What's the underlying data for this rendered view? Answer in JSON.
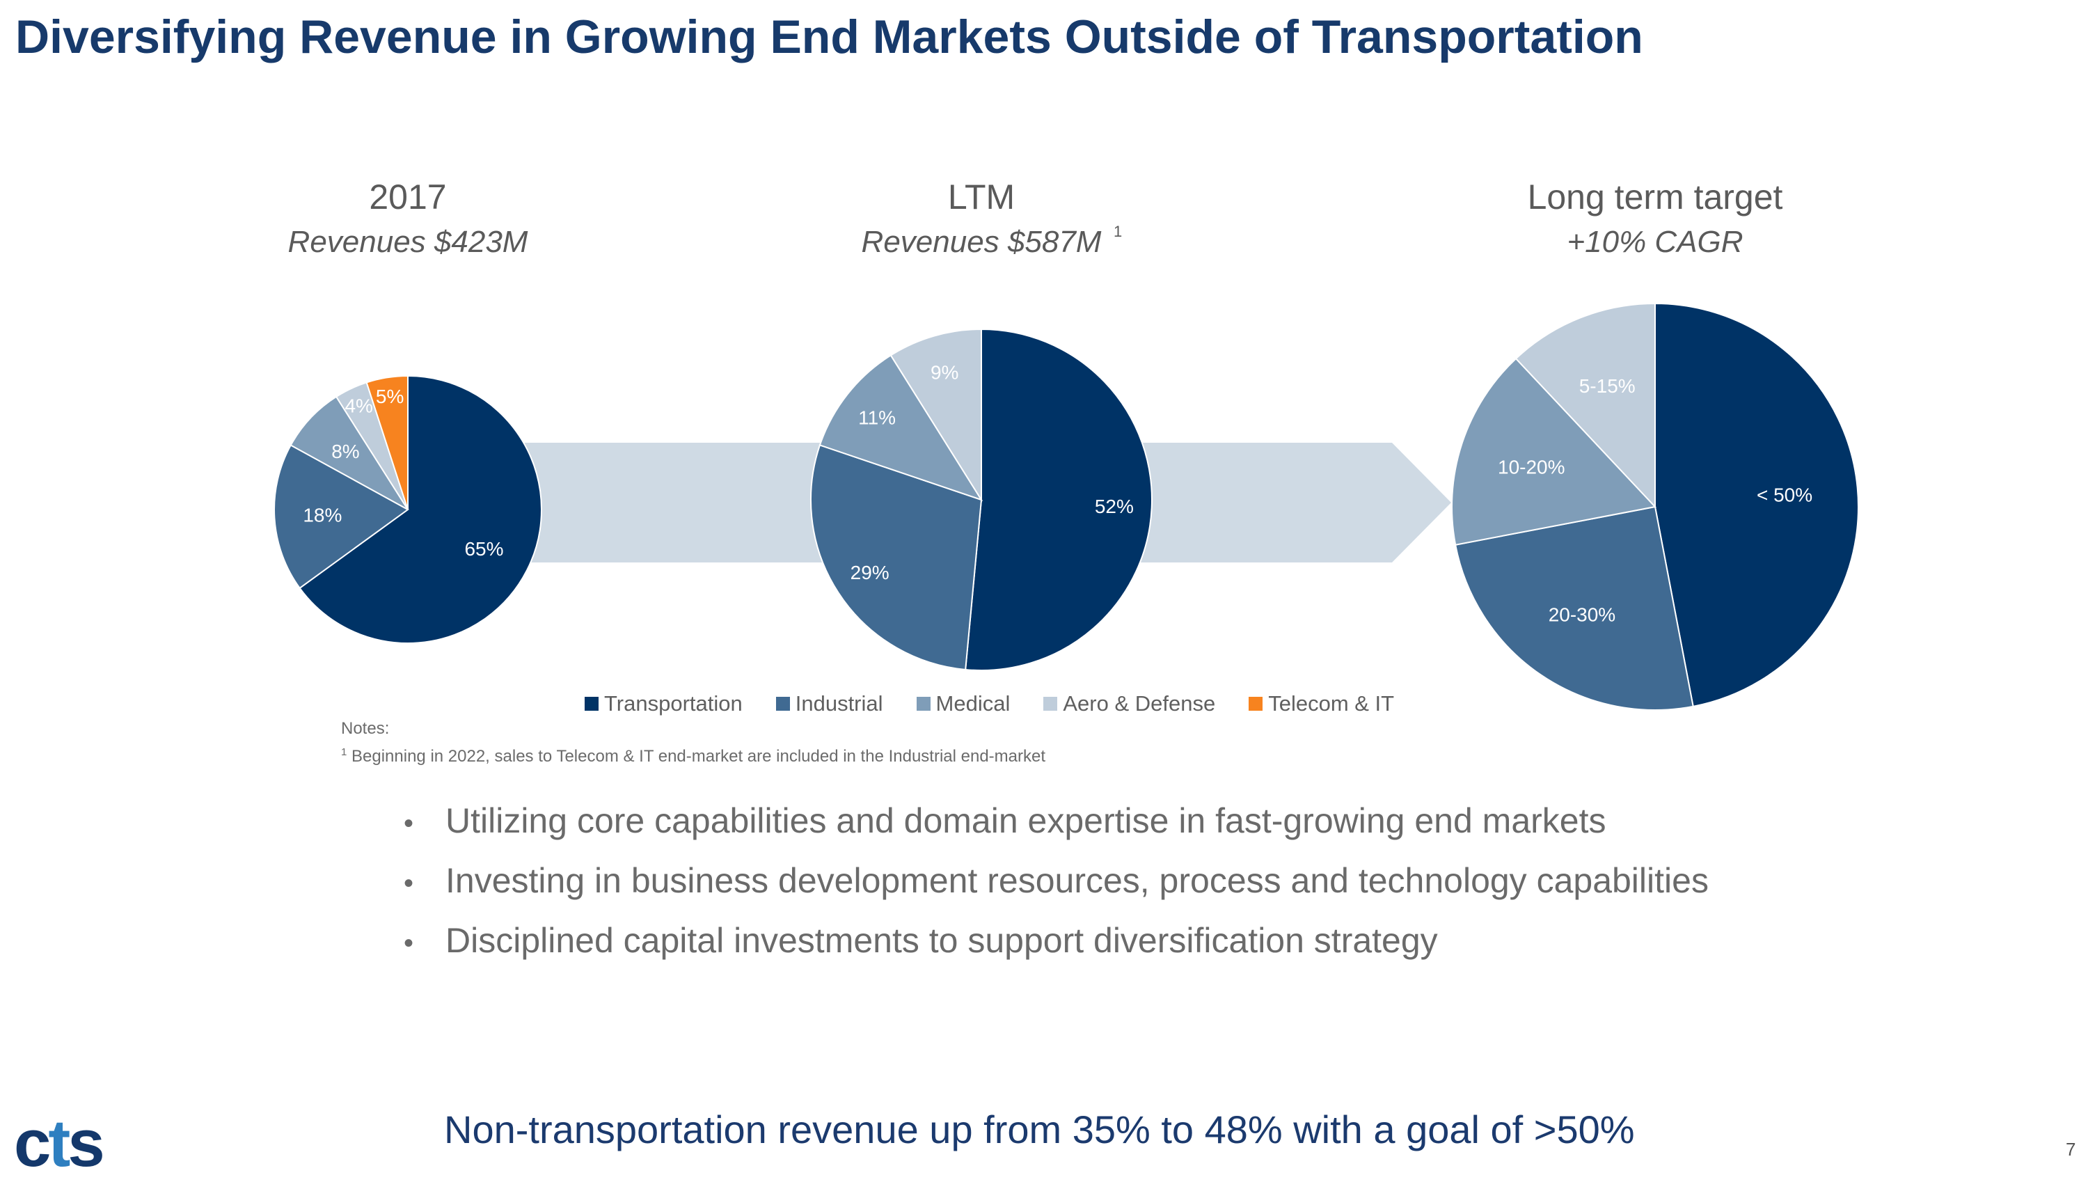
{
  "title": "Diversifying Revenue in Growing End Markets Outside of Transportation",
  "colors": {
    "title": "#173a6b",
    "transportation": "#003366",
    "industrial": "#406a92",
    "medical": "#7f9db8",
    "aero_defense": "#bfcddb",
    "telecom_it": "#f7831f",
    "arrow": "#cfdae4"
  },
  "chart_data": [
    {
      "type": "pie",
      "title": "2017",
      "subtitle": "Revenues $423M",
      "footnote_marker": "",
      "slices": [
        {
          "label": "Transportation",
          "value": 65,
          "text": "65%"
        },
        {
          "label": "Industrial",
          "value": 18,
          "text": "18%"
        },
        {
          "label": "Medical",
          "value": 8,
          "text": "8%"
        },
        {
          "label": "Aero & Defense",
          "value": 4,
          "text": "4%"
        },
        {
          "label": "Telecom & IT",
          "value": 5,
          "text": "5%"
        }
      ]
    },
    {
      "type": "pie",
      "title": "LTM",
      "subtitle": "Revenues $587M",
      "footnote_marker": "1",
      "slices": [
        {
          "label": "Transportation",
          "value": 52,
          "text": "52%"
        },
        {
          "label": "Industrial",
          "value": 29,
          "text": "29%"
        },
        {
          "label": "Medical",
          "value": 11,
          "text": "11%"
        },
        {
          "label": "Aero & Defense",
          "value": 9,
          "text": "9%"
        }
      ]
    },
    {
      "type": "pie",
      "title": "Long term target",
      "subtitle": "+10% CAGR",
      "footnote_marker": "",
      "slices": [
        {
          "label": "Transportation",
          "value": 47,
          "text": "< 50%"
        },
        {
          "label": "Industrial",
          "value": 25,
          "text": "20-30%"
        },
        {
          "label": "Medical",
          "value": 16,
          "text": "10-20%"
        },
        {
          "label": "Aero & Defense",
          "value": 12,
          "text": "5-15%"
        }
      ]
    }
  ],
  "legend": [
    {
      "label": "Transportation",
      "color": "#003366"
    },
    {
      "label": "Industrial",
      "color": "#406a92"
    },
    {
      "label": "Medical",
      "color": "#7f9db8"
    },
    {
      "label": "Aero & Defense",
      "color": "#bfcddb"
    },
    {
      "label": "Telecom & IT",
      "color": "#f7831f"
    }
  ],
  "notes": {
    "heading": "Notes:",
    "marker": "1",
    "text": "Beginning in 2022, sales to Telecom & IT end-market are included in the Industrial end-market"
  },
  "bullets": [
    "Utilizing core capabilities and domain expertise in fast-growing end markets",
    "Investing in business development resources, process and technology capabilities",
    "Disciplined capital investments to support diversification strategy"
  ],
  "bullet_glyph": "•",
  "tagline": "Non-transportation revenue up from 35% to 48% with a goal of >50%",
  "logo": {
    "c": "c",
    "t": "t",
    "s": "s"
  },
  "page_number": "7"
}
